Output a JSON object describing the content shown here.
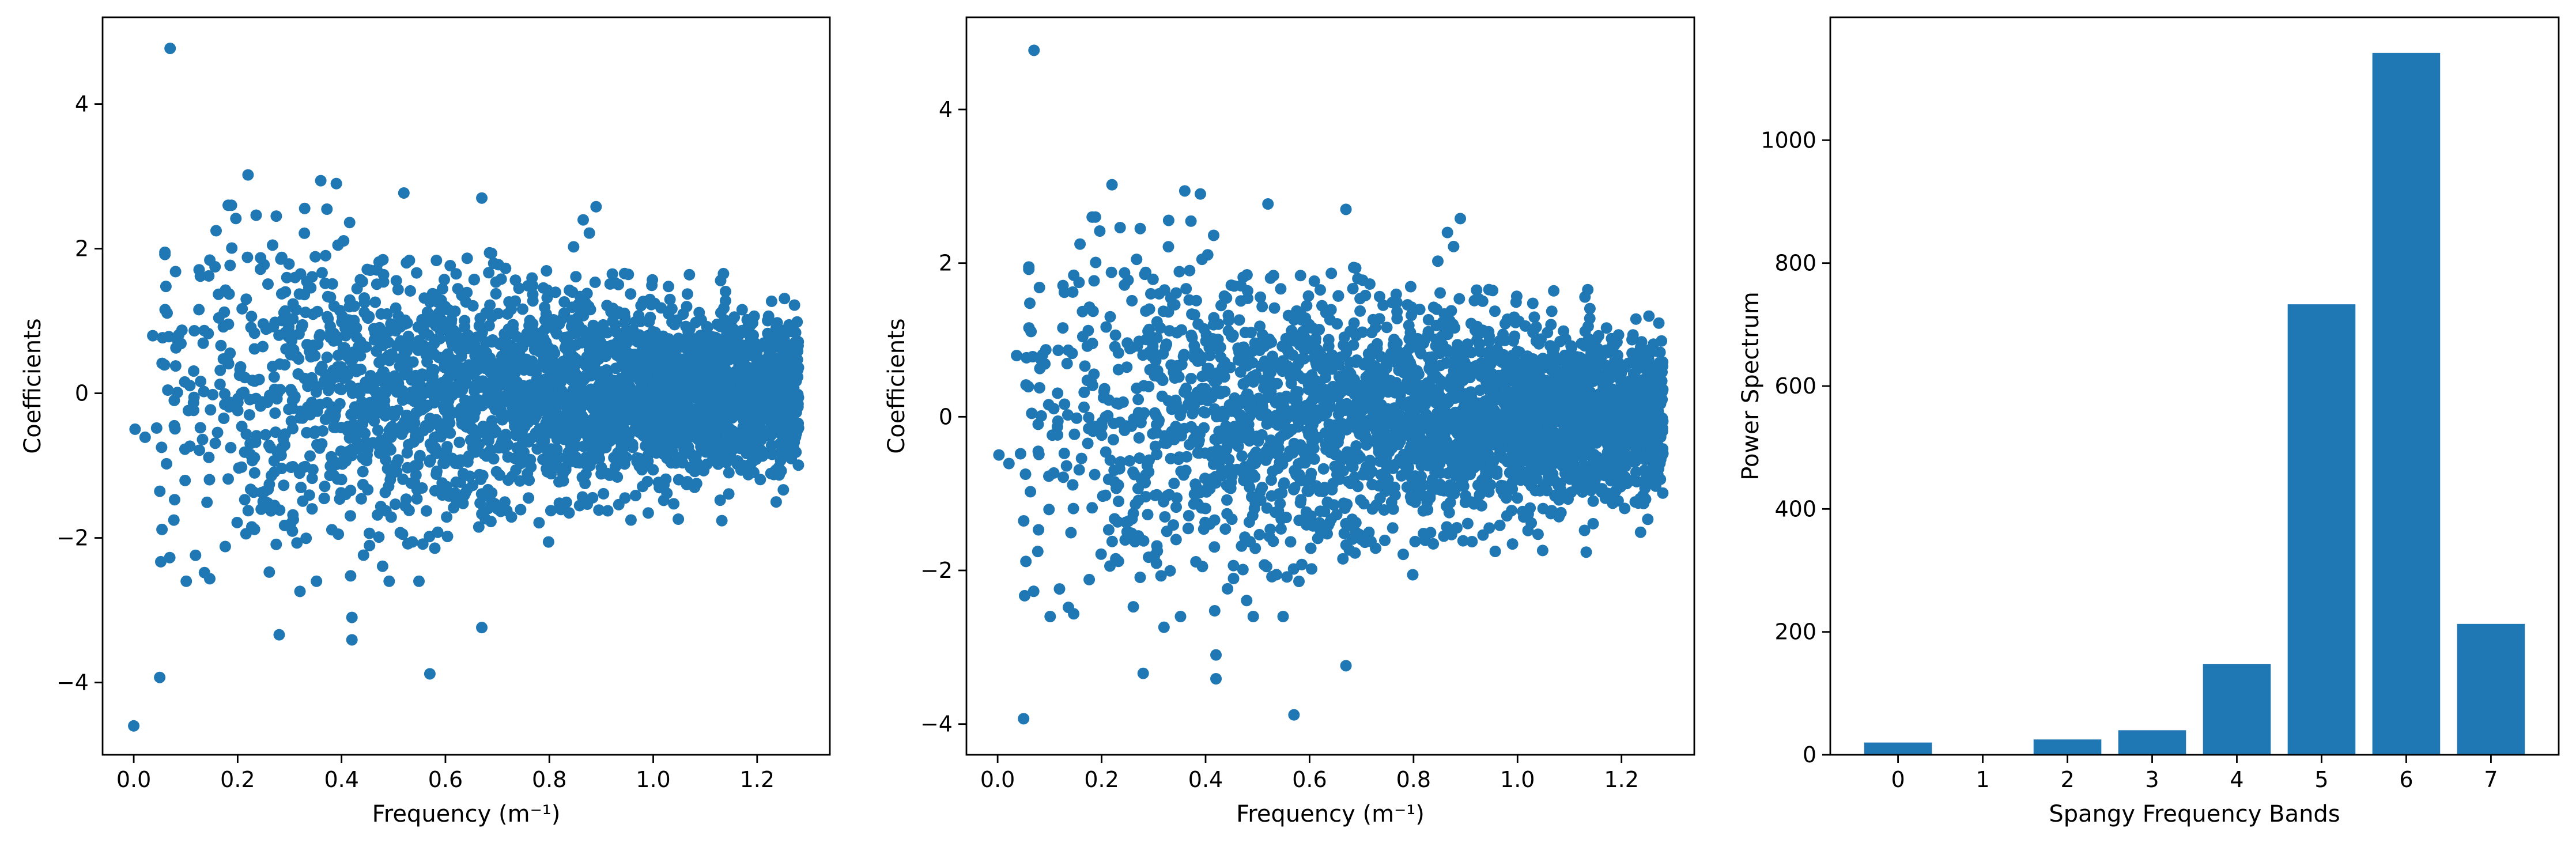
{
  "chart_data": [
    {
      "type": "scatter",
      "title": "",
      "xlabel": "Frequency (m⁻¹)",
      "ylabel": "Coefficients",
      "xlim": [
        -0.06,
        1.34
      ],
      "ylim": [
        -5.0,
        5.2
      ],
      "xticks": [
        0.0,
        0.2,
        0.4,
        0.6,
        0.8,
        1.0,
        1.2
      ],
      "xtick_labels": [
        "0.0",
        "0.2",
        "0.4",
        "0.6",
        "0.8",
        "1.0",
        "1.2"
      ],
      "yticks": [
        -4,
        -2,
        0,
        2,
        4
      ],
      "ytick_labels": [
        "−4",
        "−2",
        "0",
        "2",
        "4"
      ],
      "color": "#1f77b4",
      "grid": false,
      "x_range": [
        0.0,
        1.28
      ],
      "highlighted_points": [
        {
          "x": 0.07,
          "y": 4.77
        },
        {
          "x": 0.0,
          "y": -4.6
        },
        {
          "x": 0.05,
          "y": -3.93
        },
        {
          "x": 0.22,
          "y": 3.02
        },
        {
          "x": 0.36,
          "y": 2.94
        },
        {
          "x": 0.39,
          "y": 2.9
        },
        {
          "x": 0.52,
          "y": 2.77
        },
        {
          "x": 0.67,
          "y": 2.7
        },
        {
          "x": 0.89,
          "y": 2.58
        },
        {
          "x": 0.06,
          "y": 1.95
        },
        {
          "x": 0.06,
          "y": 1.92
        },
        {
          "x": 0.42,
          "y": -3.41
        },
        {
          "x": 0.42,
          "y": -3.1
        },
        {
          "x": 0.57,
          "y": -3.88
        },
        {
          "x": 0.67,
          "y": -3.24
        },
        {
          "x": 0.28,
          "y": -3.34
        },
        {
          "x": 0.32,
          "y": -2.74
        }
      ]
    },
    {
      "type": "scatter",
      "title": "",
      "xlabel": "Frequency (m⁻¹)",
      "ylabel": "Coefficients",
      "xlim": [
        -0.06,
        1.34
      ],
      "ylim": [
        -4.4,
        5.2
      ],
      "xticks": [
        0.0,
        0.2,
        0.4,
        0.6,
        0.8,
        1.0,
        1.2
      ],
      "xtick_labels": [
        "0.0",
        "0.2",
        "0.4",
        "0.6",
        "0.8",
        "1.0",
        "1.2"
      ],
      "yticks": [
        -4,
        -2,
        0,
        2,
        4
      ],
      "ytick_labels": [
        "−4",
        "−2",
        "0",
        "2",
        "4"
      ],
      "color": "#1f77b4",
      "grid": false,
      "x_range": [
        0.0,
        1.28
      ],
      "highlighted_points": [
        {
          "x": 0.07,
          "y": 4.77
        },
        {
          "x": 0.05,
          "y": -3.93
        },
        {
          "x": 0.22,
          "y": 3.02
        },
        {
          "x": 0.36,
          "y": 2.94
        },
        {
          "x": 0.39,
          "y": 2.9
        },
        {
          "x": 0.52,
          "y": 2.77
        },
        {
          "x": 0.67,
          "y": 2.7
        },
        {
          "x": 0.89,
          "y": 2.58
        },
        {
          "x": 0.06,
          "y": 1.95
        },
        {
          "x": 0.06,
          "y": 1.92
        },
        {
          "x": 0.42,
          "y": -3.41
        },
        {
          "x": 0.42,
          "y": -3.1
        },
        {
          "x": 0.57,
          "y": -3.88
        },
        {
          "x": 0.67,
          "y": -3.24
        },
        {
          "x": 0.28,
          "y": -3.34
        },
        {
          "x": 0.32,
          "y": -2.74
        }
      ]
    },
    {
      "type": "bar",
      "title": "",
      "xlabel": "Spangy Frequency Bands",
      "ylabel": "Power Spectrum",
      "categories": [
        "0",
        "1",
        "2",
        "3",
        "4",
        "5",
        "6",
        "7"
      ],
      "values": [
        20,
        0,
        25,
        40,
        148,
        733,
        1142,
        213
      ],
      "ylim": [
        0,
        1200
      ],
      "yticks": [
        0,
        200,
        400,
        600,
        800,
        1000
      ],
      "ytick_labels": [
        "0",
        "200",
        "400",
        "600",
        "800",
        "1000"
      ],
      "color": "#1f77b4",
      "grid": false
    }
  ]
}
